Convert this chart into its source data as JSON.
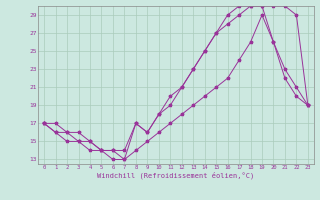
{
  "xlabel": "Windchill (Refroidissement éolien,°C)",
  "background_color": "#cce8e0",
  "grid_color": "#aaccbb",
  "line_color": "#993399",
  "xlim": [
    -0.5,
    23.5
  ],
  "ylim": [
    12.5,
    30.0
  ],
  "yticks": [
    13,
    15,
    17,
    19,
    21,
    23,
    25,
    27,
    29
  ],
  "xticks": [
    0,
    1,
    2,
    3,
    4,
    5,
    6,
    7,
    8,
    9,
    10,
    11,
    12,
    13,
    14,
    15,
    16,
    17,
    18,
    19,
    20,
    21,
    22,
    23
  ],
  "series": [
    {
      "x": [
        0,
        1,
        2,
        3,
        4,
        5,
        6,
        7,
        8,
        9,
        10,
        11,
        12,
        13,
        14,
        15,
        16,
        17,
        18,
        19,
        20,
        21,
        22,
        23
      ],
      "y": [
        17,
        16,
        16,
        15,
        15,
        14,
        14,
        13,
        14,
        15,
        16,
        17,
        18,
        19,
        20,
        21,
        22,
        24,
        26,
        29,
        26,
        22,
        20,
        19
      ]
    },
    {
      "x": [
        0,
        1,
        2,
        3,
        4,
        5,
        6,
        7,
        8,
        9,
        10,
        11,
        12,
        13,
        14,
        15,
        16,
        17,
        18,
        19,
        20,
        21,
        22,
        23
      ],
      "y": [
        17,
        17,
        16,
        16,
        15,
        14,
        14,
        14,
        17,
        16,
        18,
        20,
        21,
        23,
        25,
        27,
        28,
        29,
        30,
        30,
        26,
        23,
        21,
        19
      ]
    },
    {
      "x": [
        0,
        1,
        2,
        3,
        4,
        5,
        6,
        7,
        8,
        9,
        10,
        11,
        12,
        13,
        14,
        15,
        16,
        17,
        18,
        19,
        20,
        21,
        22,
        23
      ],
      "y": [
        17,
        16,
        15,
        15,
        14,
        14,
        13,
        13,
        17,
        16,
        18,
        19,
        21,
        23,
        25,
        27,
        29,
        30,
        30,
        30,
        30,
        30,
        29,
        19
      ]
    }
  ]
}
